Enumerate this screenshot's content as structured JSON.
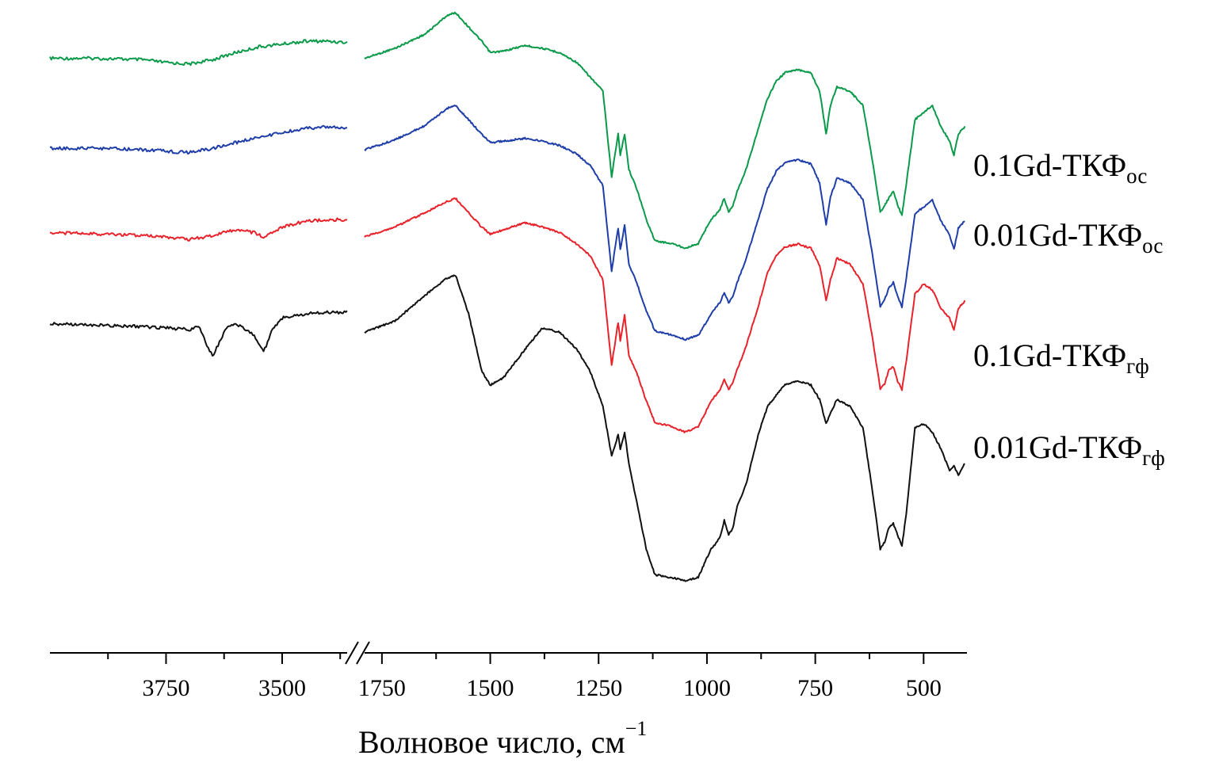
{
  "chart_data": {
    "type": "line",
    "title": "",
    "xlabel": "Волновое число, см",
    "xlabel_sup": "−1",
    "ylabel": "",
    "x_reversed": true,
    "x_break": [
      1790,
      3360
    ],
    "xlim_high_segment": [
      4000,
      3360
    ],
    "xlim_low_segment": [
      1790,
      400
    ],
    "x_ticks": [
      3750,
      3500,
      1750,
      1500,
      1250,
      1000,
      750,
      500
    ],
    "x_tick_labels": [
      "3750",
      "3500",
      "1750",
      "1500",
      "1250",
      "1000",
      "750",
      "500"
    ],
    "y_axis_shown": false,
    "grid": false,
    "legend_placement": "right, labels beside curve ends",
    "series": [
      {
        "name": "0.1Gd-ТКФ",
        "name_sub": "ос",
        "color": "#0a9a4a",
        "offset": 3,
        "points": [
          [
            4000,
            0.02
          ],
          [
            3900,
            0.02
          ],
          [
            3800,
            0.03
          ],
          [
            3750,
            0.05
          ],
          [
            3700,
            0.06
          ],
          [
            3650,
            0.03
          ],
          [
            3600,
            -0.02
          ],
          [
            3550,
            -0.06
          ],
          [
            3500,
            -0.08
          ],
          [
            3450,
            -0.1
          ],
          [
            3400,
            -0.1
          ],
          [
            3360,
            -0.09
          ],
          [
            1790,
            0.02
          ],
          [
            1720,
            -0.05
          ],
          [
            1650,
            -0.15
          ],
          [
            1600,
            -0.28
          ],
          [
            1580,
            -0.3
          ],
          [
            1550,
            -0.2
          ],
          [
            1520,
            -0.1
          ],
          [
            1500,
            -0.02
          ],
          [
            1470,
            -0.03
          ],
          [
            1420,
            -0.07
          ],
          [
            1380,
            -0.05
          ],
          [
            1340,
            -0.02
          ],
          [
            1300,
            0.05
          ],
          [
            1270,
            0.15
          ],
          [
            1240,
            0.25
          ],
          [
            1220,
            0.85
          ],
          [
            1205,
            0.55
          ],
          [
            1200,
            0.7
          ],
          [
            1190,
            0.55
          ],
          [
            1180,
            0.8
          ],
          [
            1160,
            0.95
          ],
          [
            1140,
            1.15
          ],
          [
            1120,
            1.3
          ],
          [
            1080,
            1.32
          ],
          [
            1050,
            1.35
          ],
          [
            1020,
            1.32
          ],
          [
            1000,
            1.2
          ],
          [
            990,
            1.15
          ],
          [
            970,
            1.08
          ],
          [
            960,
            1.0
          ],
          [
            950,
            1.1
          ],
          [
            940,
            1.05
          ],
          [
            930,
            0.95
          ],
          [
            910,
            0.8
          ],
          [
            880,
            0.5
          ],
          [
            860,
            0.3
          ],
          [
            840,
            0.18
          ],
          [
            820,
            0.12
          ],
          [
            790,
            0.1
          ],
          [
            760,
            0.12
          ],
          [
            740,
            0.25
          ],
          [
            725,
            0.55
          ],
          [
            715,
            0.35
          ],
          [
            700,
            0.22
          ],
          [
            670,
            0.25
          ],
          [
            640,
            0.35
          ],
          [
            620,
            0.7
          ],
          [
            600,
            1.1
          ],
          [
            590,
            1.05
          ],
          [
            580,
            1.0
          ],
          [
            570,
            0.95
          ],
          [
            560,
            1.05
          ],
          [
            550,
            1.12
          ],
          [
            540,
            0.9
          ],
          [
            520,
            0.45
          ],
          [
            500,
            0.4
          ],
          [
            480,
            0.35
          ],
          [
            460,
            0.5
          ],
          [
            440,
            0.6
          ],
          [
            430,
            0.7
          ],
          [
            420,
            0.55
          ],
          [
            405,
            0.5
          ]
        ]
      },
      {
        "name": "0.01Gd-ТКФ",
        "name_sub": "ос",
        "color": "#1f3ea8",
        "offset": 2,
        "points": [
          [
            4000,
            0.04
          ],
          [
            3900,
            0.04
          ],
          [
            3800,
            0.05
          ],
          [
            3750,
            0.06
          ],
          [
            3700,
            0.07
          ],
          [
            3650,
            0.04
          ],
          [
            3600,
            0.0
          ],
          [
            3550,
            -0.04
          ],
          [
            3500,
            -0.07
          ],
          [
            3450,
            -0.1
          ],
          [
            3400,
            -0.11
          ],
          [
            3360,
            -0.1
          ],
          [
            1790,
            0.05
          ],
          [
            1720,
            -0.02
          ],
          [
            1650,
            -0.12
          ],
          [
            1600,
            -0.24
          ],
          [
            1580,
            -0.26
          ],
          [
            1550,
            -0.16
          ],
          [
            1520,
            -0.06
          ],
          [
            1500,
            0.0
          ],
          [
            1470,
            -0.01
          ],
          [
            1420,
            -0.03
          ],
          [
            1380,
            -0.01
          ],
          [
            1340,
            0.02
          ],
          [
            1300,
            0.08
          ],
          [
            1270,
            0.16
          ],
          [
            1240,
            0.3
          ],
          [
            1220,
            0.9
          ],
          [
            1205,
            0.6
          ],
          [
            1200,
            0.75
          ],
          [
            1190,
            0.58
          ],
          [
            1180,
            0.85
          ],
          [
            1160,
            1.0
          ],
          [
            1140,
            1.18
          ],
          [
            1120,
            1.32
          ],
          [
            1080,
            1.35
          ],
          [
            1050,
            1.38
          ],
          [
            1020,
            1.35
          ],
          [
            1000,
            1.25
          ],
          [
            990,
            1.2
          ],
          [
            970,
            1.12
          ],
          [
            960,
            1.05
          ],
          [
            950,
            1.12
          ],
          [
            940,
            1.08
          ],
          [
            930,
            0.98
          ],
          [
            910,
            0.82
          ],
          [
            880,
            0.52
          ],
          [
            860,
            0.32
          ],
          [
            840,
            0.2
          ],
          [
            820,
            0.14
          ],
          [
            790,
            0.12
          ],
          [
            760,
            0.15
          ],
          [
            740,
            0.28
          ],
          [
            725,
            0.58
          ],
          [
            715,
            0.38
          ],
          [
            700,
            0.25
          ],
          [
            670,
            0.28
          ],
          [
            640,
            0.4
          ],
          [
            620,
            0.75
          ],
          [
            600,
            1.15
          ],
          [
            590,
            1.1
          ],
          [
            580,
            1.02
          ],
          [
            570,
            0.98
          ],
          [
            560,
            1.08
          ],
          [
            550,
            1.15
          ],
          [
            540,
            0.95
          ],
          [
            520,
            0.5
          ],
          [
            500,
            0.45
          ],
          [
            480,
            0.4
          ],
          [
            460,
            0.55
          ],
          [
            440,
            0.65
          ],
          [
            430,
            0.75
          ],
          [
            420,
            0.6
          ],
          [
            405,
            0.55
          ]
        ]
      },
      {
        "name": "0.1Gd-ТКФ",
        "name_sub": "гф",
        "color": "#e8232b",
        "offset": 1,
        "points": [
          [
            4000,
            0.02
          ],
          [
            3900,
            0.03
          ],
          [
            3800,
            0.04
          ],
          [
            3750,
            0.05
          ],
          [
            3700,
            0.07
          ],
          [
            3650,
            0.04
          ],
          [
            3600,
            0.0
          ],
          [
            3560,
            0.02
          ],
          [
            3540,
            0.05
          ],
          [
            3500,
            -0.02
          ],
          [
            3450,
            -0.06
          ],
          [
            3400,
            -0.07
          ],
          [
            3360,
            -0.07
          ],
          [
            1790,
            0.05
          ],
          [
            1720,
            -0.02
          ],
          [
            1650,
            -0.12
          ],
          [
            1600,
            -0.2
          ],
          [
            1580,
            -0.22
          ],
          [
            1550,
            -0.12
          ],
          [
            1520,
            -0.02
          ],
          [
            1500,
            0.03
          ],
          [
            1470,
            0.0
          ],
          [
            1420,
            -0.05
          ],
          [
            1380,
            -0.02
          ],
          [
            1340,
            0.02
          ],
          [
            1300,
            0.1
          ],
          [
            1270,
            0.18
          ],
          [
            1240,
            0.35
          ],
          [
            1220,
            0.95
          ],
          [
            1205,
            0.65
          ],
          [
            1200,
            0.78
          ],
          [
            1190,
            0.6
          ],
          [
            1180,
            0.88
          ],
          [
            1160,
            1.02
          ],
          [
            1140,
            1.2
          ],
          [
            1120,
            1.35
          ],
          [
            1080,
            1.38
          ],
          [
            1050,
            1.42
          ],
          [
            1020,
            1.38
          ],
          [
            1000,
            1.26
          ],
          [
            990,
            1.2
          ],
          [
            970,
            1.12
          ],
          [
            960,
            1.05
          ],
          [
            950,
            1.12
          ],
          [
            940,
            1.07
          ],
          [
            930,
            0.98
          ],
          [
            910,
            0.82
          ],
          [
            880,
            0.52
          ],
          [
            860,
            0.3
          ],
          [
            840,
            0.18
          ],
          [
            820,
            0.12
          ],
          [
            790,
            0.1
          ],
          [
            760,
            0.13
          ],
          [
            740,
            0.25
          ],
          [
            725,
            0.5
          ],
          [
            715,
            0.35
          ],
          [
            700,
            0.2
          ],
          [
            670,
            0.24
          ],
          [
            640,
            0.38
          ],
          [
            620,
            0.72
          ],
          [
            600,
            1.12
          ],
          [
            590,
            1.08
          ],
          [
            580,
            0.98
          ],
          [
            570,
            0.96
          ],
          [
            560,
            1.06
          ],
          [
            550,
            1.12
          ],
          [
            540,
            0.92
          ],
          [
            520,
            0.45
          ],
          [
            500,
            0.38
          ],
          [
            480,
            0.42
          ],
          [
            460,
            0.55
          ],
          [
            440,
            0.62
          ],
          [
            430,
            0.7
          ],
          [
            420,
            0.55
          ],
          [
            405,
            0.5
          ]
        ]
      },
      {
        "name": "0.01Gd-ТКФ",
        "name_sub": "гф",
        "color": "#111111",
        "offset": 0,
        "points": [
          [
            4000,
            0.02
          ],
          [
            3900,
            0.03
          ],
          [
            3800,
            0.04
          ],
          [
            3750,
            0.05
          ],
          [
            3700,
            0.06
          ],
          [
            3680,
            0.04
          ],
          [
            3650,
            0.25
          ],
          [
            3620,
            0.05
          ],
          [
            3600,
            0.02
          ],
          [
            3560,
            0.1
          ],
          [
            3540,
            0.22
          ],
          [
            3520,
            0.05
          ],
          [
            3500,
            -0.02
          ],
          [
            3450,
            -0.05
          ],
          [
            3400,
            -0.06
          ],
          [
            3360,
            -0.06
          ],
          [
            1790,
            0.08
          ],
          [
            1720,
            0.0
          ],
          [
            1650,
            -0.18
          ],
          [
            1600,
            -0.3
          ],
          [
            1580,
            -0.32
          ],
          [
            1550,
            -0.05
          ],
          [
            1520,
            0.35
          ],
          [
            1500,
            0.45
          ],
          [
            1470,
            0.4
          ],
          [
            1420,
            0.2
          ],
          [
            1380,
            0.05
          ],
          [
            1340,
            0.08
          ],
          [
            1300,
            0.2
          ],
          [
            1270,
            0.35
          ],
          [
            1240,
            0.6
          ],
          [
            1220,
            0.95
          ],
          [
            1205,
            0.8
          ],
          [
            1200,
            0.9
          ],
          [
            1190,
            0.78
          ],
          [
            1180,
            1.0
          ],
          [
            1160,
            1.3
          ],
          [
            1140,
            1.6
          ],
          [
            1120,
            1.78
          ],
          [
            1080,
            1.8
          ],
          [
            1050,
            1.82
          ],
          [
            1020,
            1.8
          ],
          [
            1000,
            1.66
          ],
          [
            990,
            1.6
          ],
          [
            970,
            1.52
          ],
          [
            960,
            1.4
          ],
          [
            950,
            1.5
          ],
          [
            940,
            1.45
          ],
          [
            930,
            1.3
          ],
          [
            910,
            1.15
          ],
          [
            880,
            0.78
          ],
          [
            860,
            0.6
          ],
          [
            840,
            0.52
          ],
          [
            820,
            0.45
          ],
          [
            790,
            0.42
          ],
          [
            760,
            0.45
          ],
          [
            740,
            0.55
          ],
          [
            725,
            0.72
          ],
          [
            715,
            0.65
          ],
          [
            700,
            0.55
          ],
          [
            670,
            0.6
          ],
          [
            640,
            0.75
          ],
          [
            620,
            1.15
          ],
          [
            600,
            1.6
          ],
          [
            590,
            1.55
          ],
          [
            580,
            1.45
          ],
          [
            570,
            1.42
          ],
          [
            560,
            1.5
          ],
          [
            550,
            1.58
          ],
          [
            540,
            1.35
          ],
          [
            520,
            0.75
          ],
          [
            500,
            0.72
          ],
          [
            480,
            0.78
          ],
          [
            460,
            0.9
          ],
          [
            440,
            1.05
          ],
          [
            430,
            1.02
          ],
          [
            420,
            1.08
          ],
          [
            405,
            1.0
          ]
        ]
      }
    ]
  }
}
